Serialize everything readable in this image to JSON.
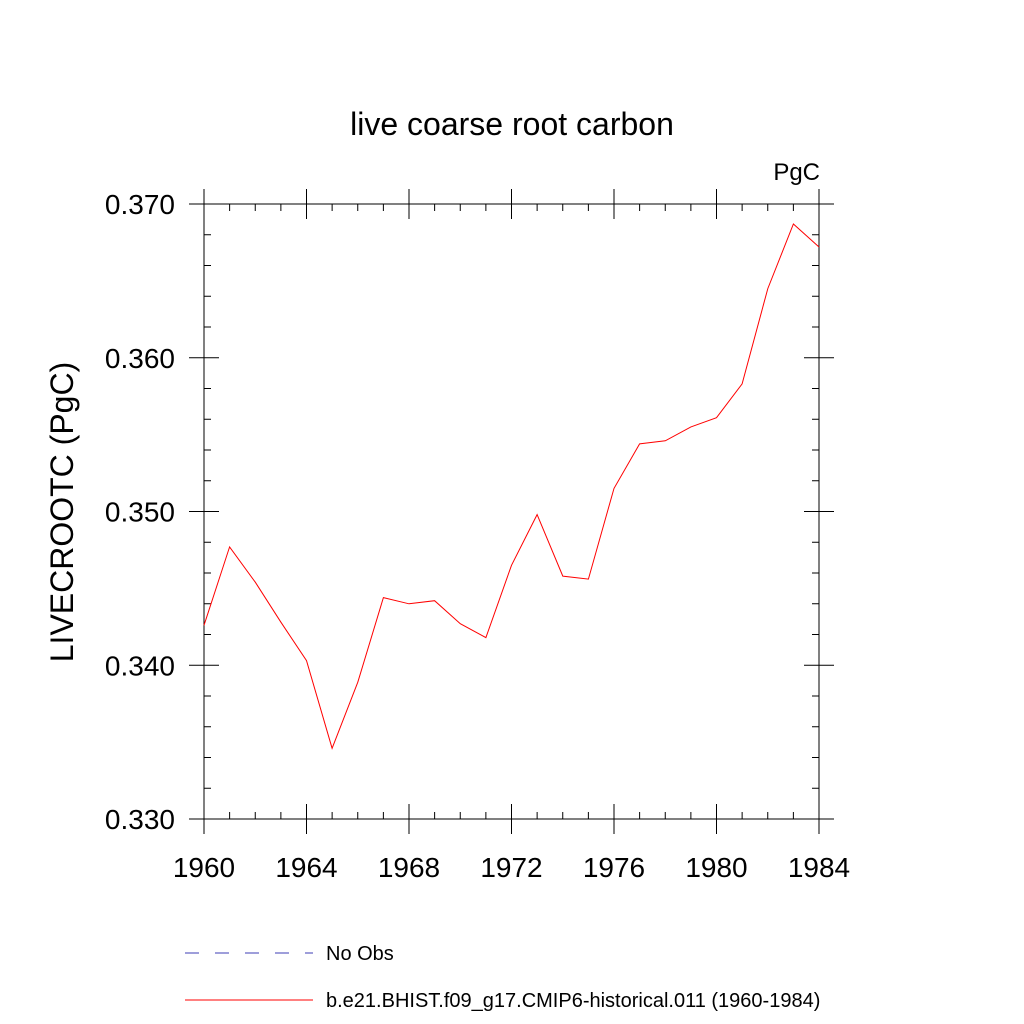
{
  "chart_data": {
    "type": "line",
    "title": "live coarse root carbon",
    "units_label": "PgC",
    "ylabel": "LIVECROOTC  (PgC)",
    "xlabel": "",
    "xlim": [
      1960,
      1984
    ],
    "ylim": [
      0.33,
      0.37
    ],
    "x_tick_labels": [
      "1960",
      "1964",
      "1968",
      "1972",
      "1976",
      "1980",
      "1984"
    ],
    "y_tick_labels": [
      "0.330",
      "0.340",
      "0.350",
      "0.360",
      "0.370"
    ],
    "x": [
      1960,
      1961,
      1962,
      1963,
      1964,
      1965,
      1966,
      1967,
      1968,
      1969,
      1970,
      1971,
      1972,
      1973,
      1974,
      1975,
      1976,
      1977,
      1978,
      1979,
      1980,
      1981,
      1982,
      1983,
      1984
    ],
    "series": [
      {
        "name": "b.e21.BHIST.f09_g17.CMIP6-historical.011 (1960-1984)",
        "color": "#ff0000",
        "values": [
          0.3426,
          0.3477,
          0.3454,
          0.3428,
          0.3403,
          0.3346,
          0.3389,
          0.3444,
          0.344,
          0.3442,
          0.3427,
          0.3418,
          0.3465,
          0.3498,
          0.3458,
          0.3456,
          0.3515,
          0.3544,
          0.3546,
          0.3555,
          0.3561,
          0.3583,
          0.3645,
          0.3687,
          0.3672
        ]
      }
    ],
    "legend": {
      "placement": "bottom",
      "entries": [
        {
          "label": "No Obs",
          "color": "#3c3cb4",
          "style": "dashed"
        },
        {
          "label": "b.e21.BHIST.f09_g17.CMIP6-historical.011 (1960-1984)",
          "color": "#ff0000",
          "style": "solid"
        }
      ]
    },
    "grid": false
  }
}
